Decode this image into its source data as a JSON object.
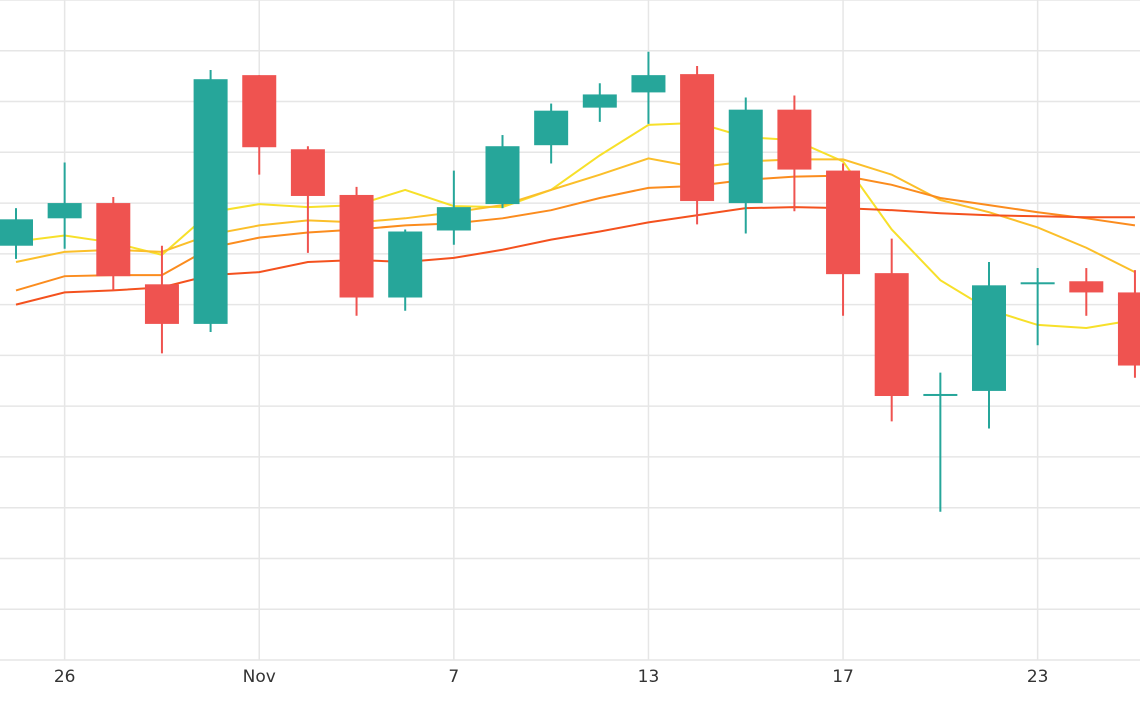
{
  "chart_data": {
    "type": "candlestick",
    "categories": [
      null,
      "26",
      null,
      null,
      null,
      "Nov",
      null,
      null,
      null,
      "7",
      null,
      null,
      null,
      "13",
      null,
      null,
      null,
      "17",
      null,
      null,
      null,
      "23",
      null,
      null
    ],
    "open": [
      408,
      435,
      450,
      370,
      331,
      576,
      503,
      458,
      357,
      423,
      449,
      507,
      544,
      559,
      577,
      450,
      542,
      482,
      381,
      262,
      265,
      372,
      373,
      362
    ],
    "high": [
      445,
      490,
      456,
      408,
      581,
      576,
      506,
      466,
      424,
      482,
      517,
      548,
      568,
      599,
      585,
      554,
      556,
      489,
      415,
      283,
      392,
      386,
      386,
      384
    ],
    "low": [
      395,
      405,
      364,
      302,
      323,
      478,
      401,
      339,
      344,
      409,
      445,
      489,
      530,
      528,
      429,
      420,
      442,
      339,
      235,
      146,
      228,
      310,
      339,
      278
    ],
    "close": [
      434,
      450,
      378,
      331,
      572,
      505,
      457,
      357,
      422,
      446,
      506,
      541,
      557,
      576,
      452,
      542,
      483,
      380,
      260,
      262,
      369,
      372,
      362,
      290
    ],
    "up_color": "#26a69a",
    "down_color": "#ef5350",
    "overlays": [
      {
        "color": "#f7e02a",
        "values": [
          412,
          418,
          411,
          399,
          441,
          449,
          446,
          448,
          463,
          447,
          446,
          463,
          497,
          527,
          529,
          515,
          512,
          491,
          424,
          374,
          345,
          330,
          327,
          335
        ]
      },
      {
        "color": "#fbbf2a",
        "values": [
          392,
          402,
          404,
          402,
          419,
          428,
          433,
          431,
          435,
          441,
          448,
          463,
          478,
          494,
          485,
          491,
          493,
          493,
          478,
          453,
          441,
          426,
          406,
          382
        ]
      },
      {
        "color": "#fb8c1e",
        "values": [
          364,
          378,
          379,
          379,
          406,
          416,
          421,
          424,
          428,
          430,
          435,
          443,
          455,
          465,
          467,
          473,
          476,
          477,
          468,
          455,
          448,
          441,
          435,
          428
        ]
      },
      {
        "color": "#f4511e",
        "values": [
          350,
          362,
          364,
          367,
          379,
          382,
          392,
          394,
          392,
          396,
          404,
          414,
          422,
          431,
          438,
          445,
          446,
          445,
          443,
          440,
          438,
          437,
          436,
          436
        ]
      }
    ],
    "ylim": [
      0,
      650
    ],
    "yticks": [
      0,
      50,
      100,
      150,
      200,
      250,
      300,
      350,
      400,
      450,
      500,
      550,
      600,
      650
    ],
    "grid": true
  }
}
